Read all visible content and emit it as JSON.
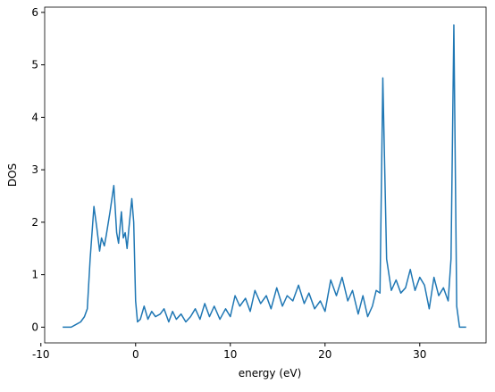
{
  "chart_data": {
    "type": "line",
    "xlabel": "energy (eV)",
    "ylabel": "DOS",
    "xlim": [
      -9.6,
      37.0
    ],
    "ylim": [
      -0.3,
      6.1
    ],
    "xticks": [
      -10,
      0,
      10,
      20,
      30
    ],
    "yticks": [
      0,
      1,
      2,
      3,
      4,
      5,
      6
    ],
    "series": [
      {
        "name": "DOS",
        "color": "#1f77b4",
        "x": [
          -7.7,
          -6.8,
          -6.3,
          -5.8,
          -5.4,
          -5.1,
          -4.8,
          -4.4,
          -4.1,
          -3.8,
          -3.6,
          -3.3,
          -3.1,
          -2.7,
          -2.3,
          -2.0,
          -1.8,
          -1.5,
          -1.3,
          -1.1,
          -0.9,
          -0.7,
          -0.4,
          -0.2,
          0.0,
          0.2,
          0.5,
          0.9,
          1.3,
          1.7,
          2.1,
          2.6,
          3.0,
          3.5,
          3.9,
          4.3,
          4.8,
          5.3,
          5.8,
          6.3,
          6.8,
          7.3,
          7.8,
          8.3,
          8.9,
          9.5,
          10.0,
          10.5,
          11.0,
          11.6,
          12.1,
          12.6,
          13.2,
          13.8,
          14.3,
          14.9,
          15.5,
          16.0,
          16.6,
          17.2,
          17.8,
          18.3,
          18.9,
          19.5,
          20.0,
          20.6,
          21.2,
          21.8,
          22.4,
          22.9,
          23.5,
          24.0,
          24.5,
          25.0,
          25.4,
          25.8,
          26.1,
          26.5,
          27.0,
          27.5,
          28.0,
          28.5,
          29.0,
          29.5,
          30.0,
          30.5,
          31.0,
          31.5,
          32.0,
          32.5,
          33.0,
          33.3,
          33.6,
          33.9,
          34.2,
          34.9
        ],
        "values": [
          0.0,
          0.0,
          0.05,
          0.1,
          0.2,
          0.35,
          1.3,
          2.3,
          1.9,
          1.45,
          1.7,
          1.55,
          1.75,
          2.2,
          2.7,
          1.8,
          1.6,
          2.2,
          1.7,
          1.8,
          1.5,
          1.9,
          2.45,
          2.0,
          0.5,
          0.1,
          0.15,
          0.4,
          0.15,
          0.3,
          0.2,
          0.25,
          0.35,
          0.1,
          0.3,
          0.15,
          0.25,
          0.1,
          0.2,
          0.35,
          0.15,
          0.45,
          0.2,
          0.4,
          0.15,
          0.35,
          0.2,
          0.6,
          0.4,
          0.55,
          0.3,
          0.7,
          0.45,
          0.6,
          0.35,
          0.75,
          0.4,
          0.6,
          0.5,
          0.8,
          0.45,
          0.65,
          0.35,
          0.5,
          0.3,
          0.9,
          0.6,
          0.95,
          0.5,
          0.7,
          0.25,
          0.6,
          0.2,
          0.4,
          0.7,
          0.65,
          4.75,
          1.3,
          0.7,
          0.9,
          0.65,
          0.75,
          1.1,
          0.7,
          0.95,
          0.8,
          0.35,
          0.95,
          0.6,
          0.75,
          0.5,
          1.3,
          5.76,
          0.4,
          0.0,
          0.0
        ]
      }
    ]
  }
}
